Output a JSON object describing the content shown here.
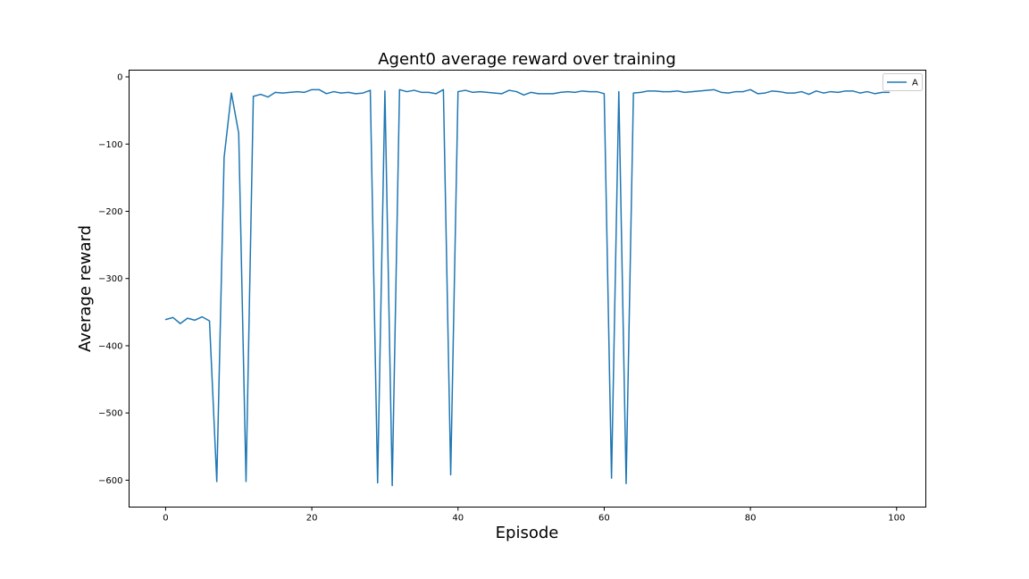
{
  "chart_data": {
    "type": "line",
    "title": "Agent0 average reward over training",
    "xlabel": "Episode",
    "ylabel": "Average reward",
    "xlim": [
      -5,
      104
    ],
    "ylim": [
      -640,
      10
    ],
    "xticks": [
      0,
      20,
      40,
      60,
      80,
      100
    ],
    "yticks": [
      0,
      -100,
      -200,
      -300,
      -400,
      -500,
      -600
    ],
    "grid": false,
    "legend_position": "top-right",
    "colors": {
      "series": "#1f77b4"
    },
    "series": [
      {
        "name": "A",
        "x": [
          0,
          1,
          2,
          3,
          4,
          5,
          6,
          7,
          8,
          9,
          10,
          11,
          12,
          13,
          14,
          15,
          16,
          17,
          18,
          19,
          20,
          21,
          22,
          23,
          24,
          25,
          26,
          27,
          28,
          29,
          30,
          31,
          32,
          33,
          34,
          35,
          36,
          37,
          38,
          39,
          40,
          41,
          42,
          43,
          44,
          45,
          46,
          47,
          48,
          49,
          50,
          51,
          52,
          53,
          54,
          55,
          56,
          57,
          58,
          59,
          60,
          61,
          62,
          63,
          64,
          65,
          66,
          67,
          68,
          69,
          70,
          71,
          72,
          73,
          74,
          75,
          76,
          77,
          78,
          79,
          80,
          81,
          82,
          83,
          84,
          85,
          86,
          87,
          88,
          89,
          90,
          91,
          92,
          93,
          94,
          95,
          96,
          97,
          98,
          99
        ],
        "values": [
          -361,
          -358,
          -367,
          -359,
          -362,
          -357,
          -363,
          -602,
          -120,
          -24,
          -84,
          -602,
          -29,
          -26,
          -30,
          -23,
          -24,
          -23,
          -22,
          -23,
          -19,
          -19,
          -25,
          -22,
          -24,
          -23,
          -25,
          -24,
          -20,
          -604,
          -21,
          -608,
          -19,
          -22,
          -20,
          -23,
          -23,
          -25,
          -19,
          -592,
          -22,
          -20,
          -23,
          -22,
          -23,
          -24,
          -25,
          -20,
          -22,
          -27,
          -23,
          -25,
          -25,
          -25,
          -23,
          -22,
          -23,
          -21,
          -22,
          -22,
          -25,
          -597,
          -22,
          -605,
          -24,
          -23,
          -21,
          -21,
          -22,
          -22,
          -21,
          -23,
          -22,
          -21,
          -20,
          -19,
          -23,
          -24,
          -22,
          -22,
          -19,
          -25,
          -24,
          -21,
          -22,
          -24,
          -24,
          -22,
          -26,
          -21,
          -24,
          -22,
          -23,
          -21,
          -21,
          -24,
          -22,
          -25,
          -23,
          -23
        ]
      }
    ]
  }
}
